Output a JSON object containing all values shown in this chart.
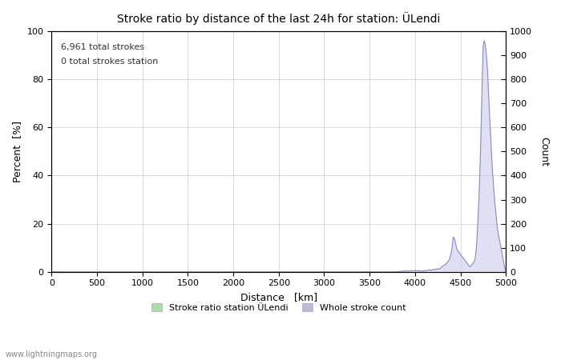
{
  "title": "Stroke ratio by distance of the last 24h for station: ÜLendi",
  "xlabel": "Distance   [km]",
  "ylabel_left": "Percent  [%]",
  "ylabel_right": "Count",
  "annotation_line1": "6,961 total strokes",
  "annotation_line2": "0 total strokes station",
  "watermark": "www.lightningmaps.org",
  "xlim": [
    0,
    5000
  ],
  "ylim_left": [
    0,
    100
  ],
  "ylim_right": [
    0,
    1000
  ],
  "xticks": [
    0,
    500,
    1000,
    1500,
    2000,
    2500,
    3000,
    3500,
    4000,
    4500,
    5000
  ],
  "yticks_left": [
    0,
    20,
    40,
    60,
    80,
    100
  ],
  "yticks_right": [
    0,
    100,
    200,
    300,
    400,
    500,
    600,
    700,
    800,
    900,
    1000
  ],
  "legend_labels": [
    "Stroke ratio station ÜLendi",
    "Whole stroke count"
  ],
  "legend_colors": [
    "#aaddaa",
    "#bbbbdd"
  ],
  "background_color": "#ffffff",
  "grid_color": "#cccccc",
  "line_color_count": "#8888bb",
  "fill_color_count": "#ccccee",
  "stroke_count_x": [
    0,
    500,
    1000,
    1500,
    2000,
    2500,
    3000,
    3500,
    3800,
    3850,
    3880,
    3900,
    3920,
    3940,
    3960,
    3980,
    4000,
    4020,
    4040,
    4060,
    4080,
    4100,
    4120,
    4140,
    4160,
    4180,
    4200,
    4220,
    4240,
    4260,
    4280,
    4300,
    4320,
    4340,
    4360,
    4380,
    4400,
    4410,
    4420,
    4430,
    4440,
    4450,
    4460,
    4470,
    4480,
    4490,
    4500,
    4510,
    4520,
    4530,
    4540,
    4550,
    4560,
    4570,
    4580,
    4590,
    4600,
    4610,
    4620,
    4630,
    4640,
    4650,
    4660,
    4670,
    4680,
    4690,
    4700,
    4710,
    4720,
    4730,
    4740,
    4750,
    4760,
    4770,
    4780,
    4790,
    4800,
    4810,
    4820,
    4830,
    4840,
    4850,
    4860,
    4870,
    4880,
    4890,
    4900,
    4910,
    4920,
    4930,
    4940,
    4950,
    4960,
    4970,
    4980,
    4990,
    5000
  ],
  "stroke_count_y": [
    0,
    0,
    0,
    0,
    0,
    0,
    0,
    0,
    0,
    2,
    4,
    3,
    4,
    3,
    5,
    3,
    6,
    4,
    5,
    4,
    3,
    4,
    6,
    5,
    9,
    6,
    11,
    9,
    13,
    11,
    16,
    22,
    27,
    32,
    42,
    52,
    82,
    110,
    145,
    140,
    130,
    110,
    95,
    88,
    82,
    77,
    72,
    67,
    62,
    57,
    52,
    47,
    42,
    37,
    32,
    27,
    22,
    22,
    27,
    32,
    37,
    42,
    52,
    82,
    130,
    200,
    280,
    380,
    500,
    650,
    820,
    940,
    960,
    950,
    920,
    880,
    820,
    730,
    650,
    580,
    500,
    430,
    380,
    320,
    280,
    240,
    200,
    170,
    150,
    130,
    110,
    90,
    70,
    50,
    30,
    10,
    0
  ],
  "stroke_ratio_x": [],
  "stroke_ratio_y": []
}
